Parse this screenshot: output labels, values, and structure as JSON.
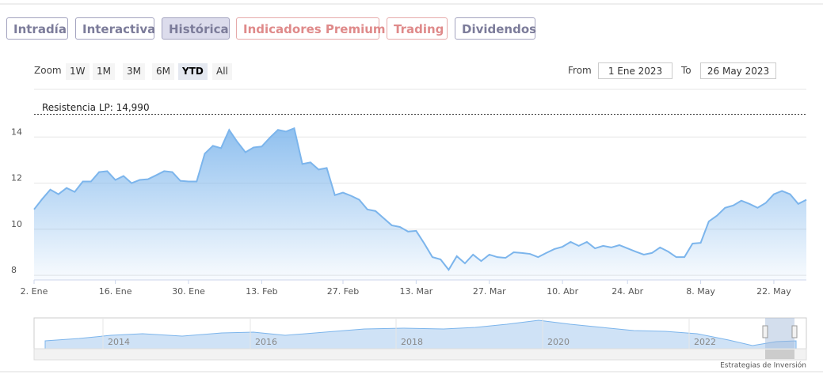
{
  "tabs": [
    "Intradía",
    "Interactiva",
    "Histórica",
    "Indicadores Premium",
    "Trading",
    "Dividendos"
  ],
  "active_tab": 2,
  "zoom": {
    "label": "Zoom",
    "buttons": [
      "1W",
      "1M",
      "3M",
      "6M",
      "YTD",
      "All"
    ],
    "active": 4
  },
  "range": {
    "from_label": "From",
    "from": "1 Ene 2023",
    "to_label": "To",
    "to": "26 May 2023"
  },
  "chart_data": {
    "type": "area",
    "categories": [
      "2. Ene",
      null,
      null,
      null,
      null,
      null,
      null,
      null,
      null,
      null,
      "16. Ene",
      null,
      null,
      null,
      null,
      null,
      null,
      null,
      null,
      "30. Ene",
      null,
      null,
      null,
      null,
      null,
      null,
      null,
      null,
      "13. Feb",
      null,
      null,
      null,
      null,
      null,
      null,
      null,
      null,
      null,
      "27. Feb",
      null,
      null,
      null,
      null,
      null,
      null,
      null,
      null,
      "13. Mar",
      null,
      null,
      null,
      null,
      null,
      null,
      null,
      null,
      "27. Mar",
      null,
      null,
      null,
      null,
      null,
      null,
      null,
      null,
      "10. Abr",
      null,
      null,
      null,
      null,
      null,
      null,
      null,
      "24. Abr",
      null,
      null,
      null,
      null,
      null,
      null,
      null,
      null,
      "8. May",
      null,
      null,
      null,
      null,
      null,
      null,
      null,
      null,
      "22. May",
      null,
      null,
      null,
      null
    ],
    "values": [
      10.86,
      11.31,
      11.72,
      11.52,
      11.79,
      11.62,
      12.07,
      12.07,
      12.48,
      12.52,
      12.14,
      12.31,
      12.0,
      12.14,
      12.17,
      12.34,
      12.52,
      12.48,
      12.1,
      12.07,
      12.07,
      13.28,
      13.62,
      13.52,
      14.31,
      13.79,
      13.34,
      13.55,
      13.59,
      13.97,
      14.31,
      14.24,
      14.38,
      12.83,
      12.9,
      12.59,
      12.66,
      11.48,
      11.59,
      11.45,
      11.28,
      10.86,
      10.79,
      10.48,
      10.17,
      10.1,
      9.9,
      9.93,
      9.38,
      8.79,
      8.69,
      8.24,
      8.83,
      8.52,
      8.9,
      8.62,
      8.9,
      8.79,
      8.76,
      9.0,
      8.97,
      8.93,
      8.79,
      8.97,
      9.14,
      9.24,
      9.45,
      9.28,
      9.45,
      9.17,
      9.28,
      9.21,
      9.31,
      9.17,
      9.03,
      8.9,
      8.97,
      9.21,
      9.03,
      8.79,
      8.79,
      9.38,
      9.41,
      10.34,
      10.59,
      10.93,
      11.03,
      11.24,
      11.1,
      10.93,
      11.14,
      11.52,
      11.66,
      11.52,
      11.1,
      11.28
    ],
    "color": "#7cb5ec",
    "ylim": [
      7.8,
      16
    ],
    "yticks": [
      8,
      10,
      12,
      14
    ],
    "grid": true,
    "annotations": [
      {
        "text": "Resistencia LP: 14,990",
        "value": 14.99
      }
    ]
  },
  "navigator": {
    "labels": [
      "2014",
      "2016",
      "2018",
      "2020",
      "2022"
    ]
  },
  "credit": "Estrategias de Inversión"
}
